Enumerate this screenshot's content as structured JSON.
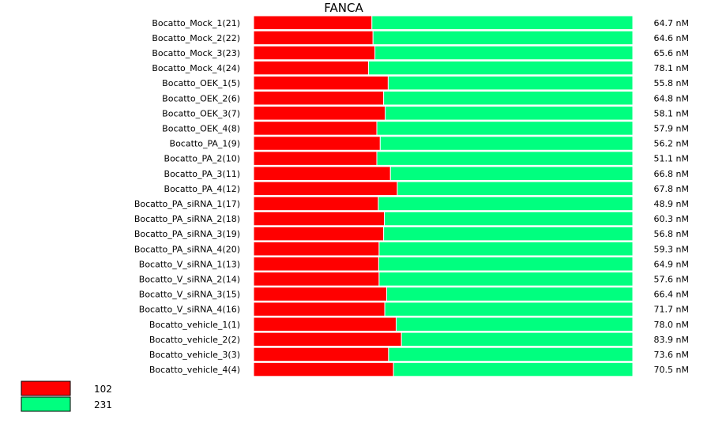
{
  "chart_data": {
    "type": "bar",
    "stacked": "percent",
    "title": "FANCA",
    "categories": [
      "Bocatto_Mock_1(21)",
      "Bocatto_Mock_2(22)",
      "Bocatto_Mock_3(23)",
      "Bocatto_Mock_4(24)",
      "Bocatto_OEK_1(5)",
      "Bocatto_OEK_2(6)",
      "Bocatto_OEK_3(7)",
      "Bocatto_OEK_4(8)",
      "Bocatto_PA_1(9)",
      "Bocatto_PA_2(10)",
      "Bocatto_PA_3(11)",
      "Bocatto_PA_4(12)",
      "Bocatto_PA_siRNA_1(17)",
      "Bocatto_PA_siRNA_2(18)",
      "Bocatto_PA_siRNA_3(19)",
      "Bocatto_PA_siRNA_4(20)",
      "Bocatto_V_siRNA_1(13)",
      "Bocatto_V_siRNA_2(14)",
      "Bocatto_V_siRNA_3(15)",
      "Bocatto_V_siRNA_4(16)",
      "Bocatto_vehicle_1(1)",
      "Bocatto_vehicle_2(2)",
      "Bocatto_vehicle_3(3)",
      "Bocatto_vehicle_4(4)"
    ],
    "totals": [
      "64.7 nM",
      "64.6 nM",
      "65.6 nM",
      "78.1 nM",
      "55.8 nM",
      "64.8 nM",
      "58.1 nM",
      "57.9 nM",
      "56.2 nM",
      "51.1 nM",
      "66.8 nM",
      "67.8 nM",
      "48.9 nM",
      "60.3 nM",
      "56.8 nM",
      "59.3 nM",
      "64.9 nM",
      "57.6 nM",
      "66.4 nM",
      "71.7 nM",
      "78.0 nM",
      "83.9 nM",
      "73.6 nM",
      "70.5 nM"
    ],
    "series": [
      {
        "name": "102",
        "color": "#ff0000",
        "values": [
          31.2,
          31.5,
          32.0,
          30.3,
          35.5,
          34.3,
          34.7,
          32.5,
          33.4,
          32.5,
          36.1,
          37.9,
          32.9,
          34.5,
          34.3,
          33.1,
          33.0,
          33.1,
          35.1,
          34.6,
          37.6,
          39.0,
          35.6,
          36.9
        ]
      },
      {
        "name": "231",
        "color": "#00ff7f",
        "values": [
          68.8,
          68.5,
          68.0,
          69.7,
          64.5,
          65.7,
          65.3,
          67.5,
          66.6,
          67.5,
          63.9,
          62.1,
          67.1,
          65.5,
          65.7,
          66.9,
          67.0,
          66.9,
          64.9,
          65.4,
          62.4,
          61.0,
          64.4,
          63.1
        ]
      }
    ],
    "xlim": [
      0,
      100
    ],
    "grid": false,
    "legend_position": "bottom-left"
  }
}
